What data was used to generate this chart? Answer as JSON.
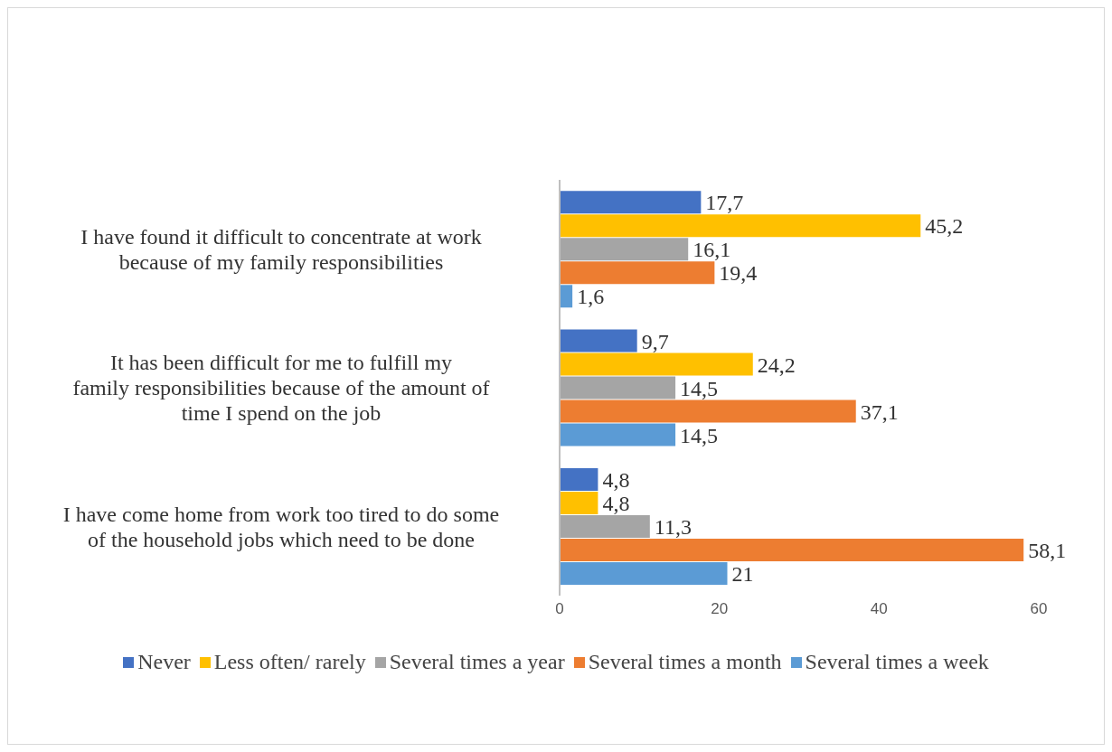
{
  "chart_data": {
    "type": "bar",
    "orientation": "horizontal",
    "categories": [
      "I have found it difficult to concentrate at work because of my family responsibilities",
      "It has been difficult for me to fulfill my family responsibilities because of the amount of time I spend on the job",
      "I have come home from work too tired to do some of the household jobs which need to be done"
    ],
    "series": [
      {
        "name": "Never",
        "color": "#4472c4",
        "values": [
          17.7,
          9.7,
          4.8
        ],
        "value_labels": [
          "17,7",
          "9,7",
          "4,8"
        ]
      },
      {
        "name": "Less often/ rarely",
        "color": "#ffc000",
        "values": [
          45.2,
          24.2,
          4.8
        ],
        "value_labels": [
          "45,2",
          "24,2",
          "4,8"
        ]
      },
      {
        "name": "Several times a year",
        "color": "#a5a5a5",
        "values": [
          16.1,
          14.5,
          11.3
        ],
        "value_labels": [
          "16,1",
          "14,5",
          "11,3"
        ]
      },
      {
        "name": "Several times a month",
        "color": "#ed7d31",
        "values": [
          19.4,
          37.1,
          58.1
        ],
        "value_labels": [
          "19,4",
          "37,1",
          "58,1"
        ]
      },
      {
        "name": "Several times a week",
        "color": "#5b9bd5",
        "values": [
          1.6,
          14.5,
          21
        ],
        "value_labels": [
          "1,6",
          "14,5",
          "21"
        ]
      }
    ],
    "xlim": [
      0,
      60
    ],
    "xticks": [
      0,
      20,
      40,
      60
    ],
    "grid": false,
    "legend": "bottom"
  }
}
